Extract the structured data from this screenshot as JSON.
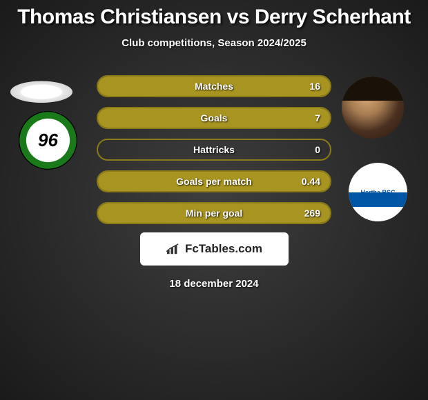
{
  "background": {
    "color_start": "#3e3e3e",
    "color_end": "#1a1a1a"
  },
  "title": "Thomas Christiansen vs Derry Scherhant",
  "subtitle": "Club competitions, Season 2024/2025",
  "stats": [
    {
      "label": "Matches",
      "value_right": "16",
      "fill_pct": 100
    },
    {
      "label": "Goals",
      "value_right": "7",
      "fill_pct": 100
    },
    {
      "label": "Hattricks",
      "value_right": "0",
      "fill_pct": 0
    },
    {
      "label": "Goals per match",
      "value_right": "0.44",
      "fill_pct": 100
    },
    {
      "label": "Min per goal",
      "value_right": "269",
      "fill_pct": 100
    }
  ],
  "bar_style": {
    "fill_color": "#a89420",
    "border_color": "#8a7a1a",
    "empty_color": "transparent"
  },
  "brand": {
    "text": "FcTables.com",
    "icon_name": "bar-chart-icon"
  },
  "date": "18 december 2024",
  "players": {
    "left": {
      "name": "Thomas Christiansen",
      "team": "Hannover 96"
    },
    "right": {
      "name": "Derry Scherhant",
      "team": "Hertha BSC"
    }
  },
  "team_badge_right_text": "Hertha BSC"
}
